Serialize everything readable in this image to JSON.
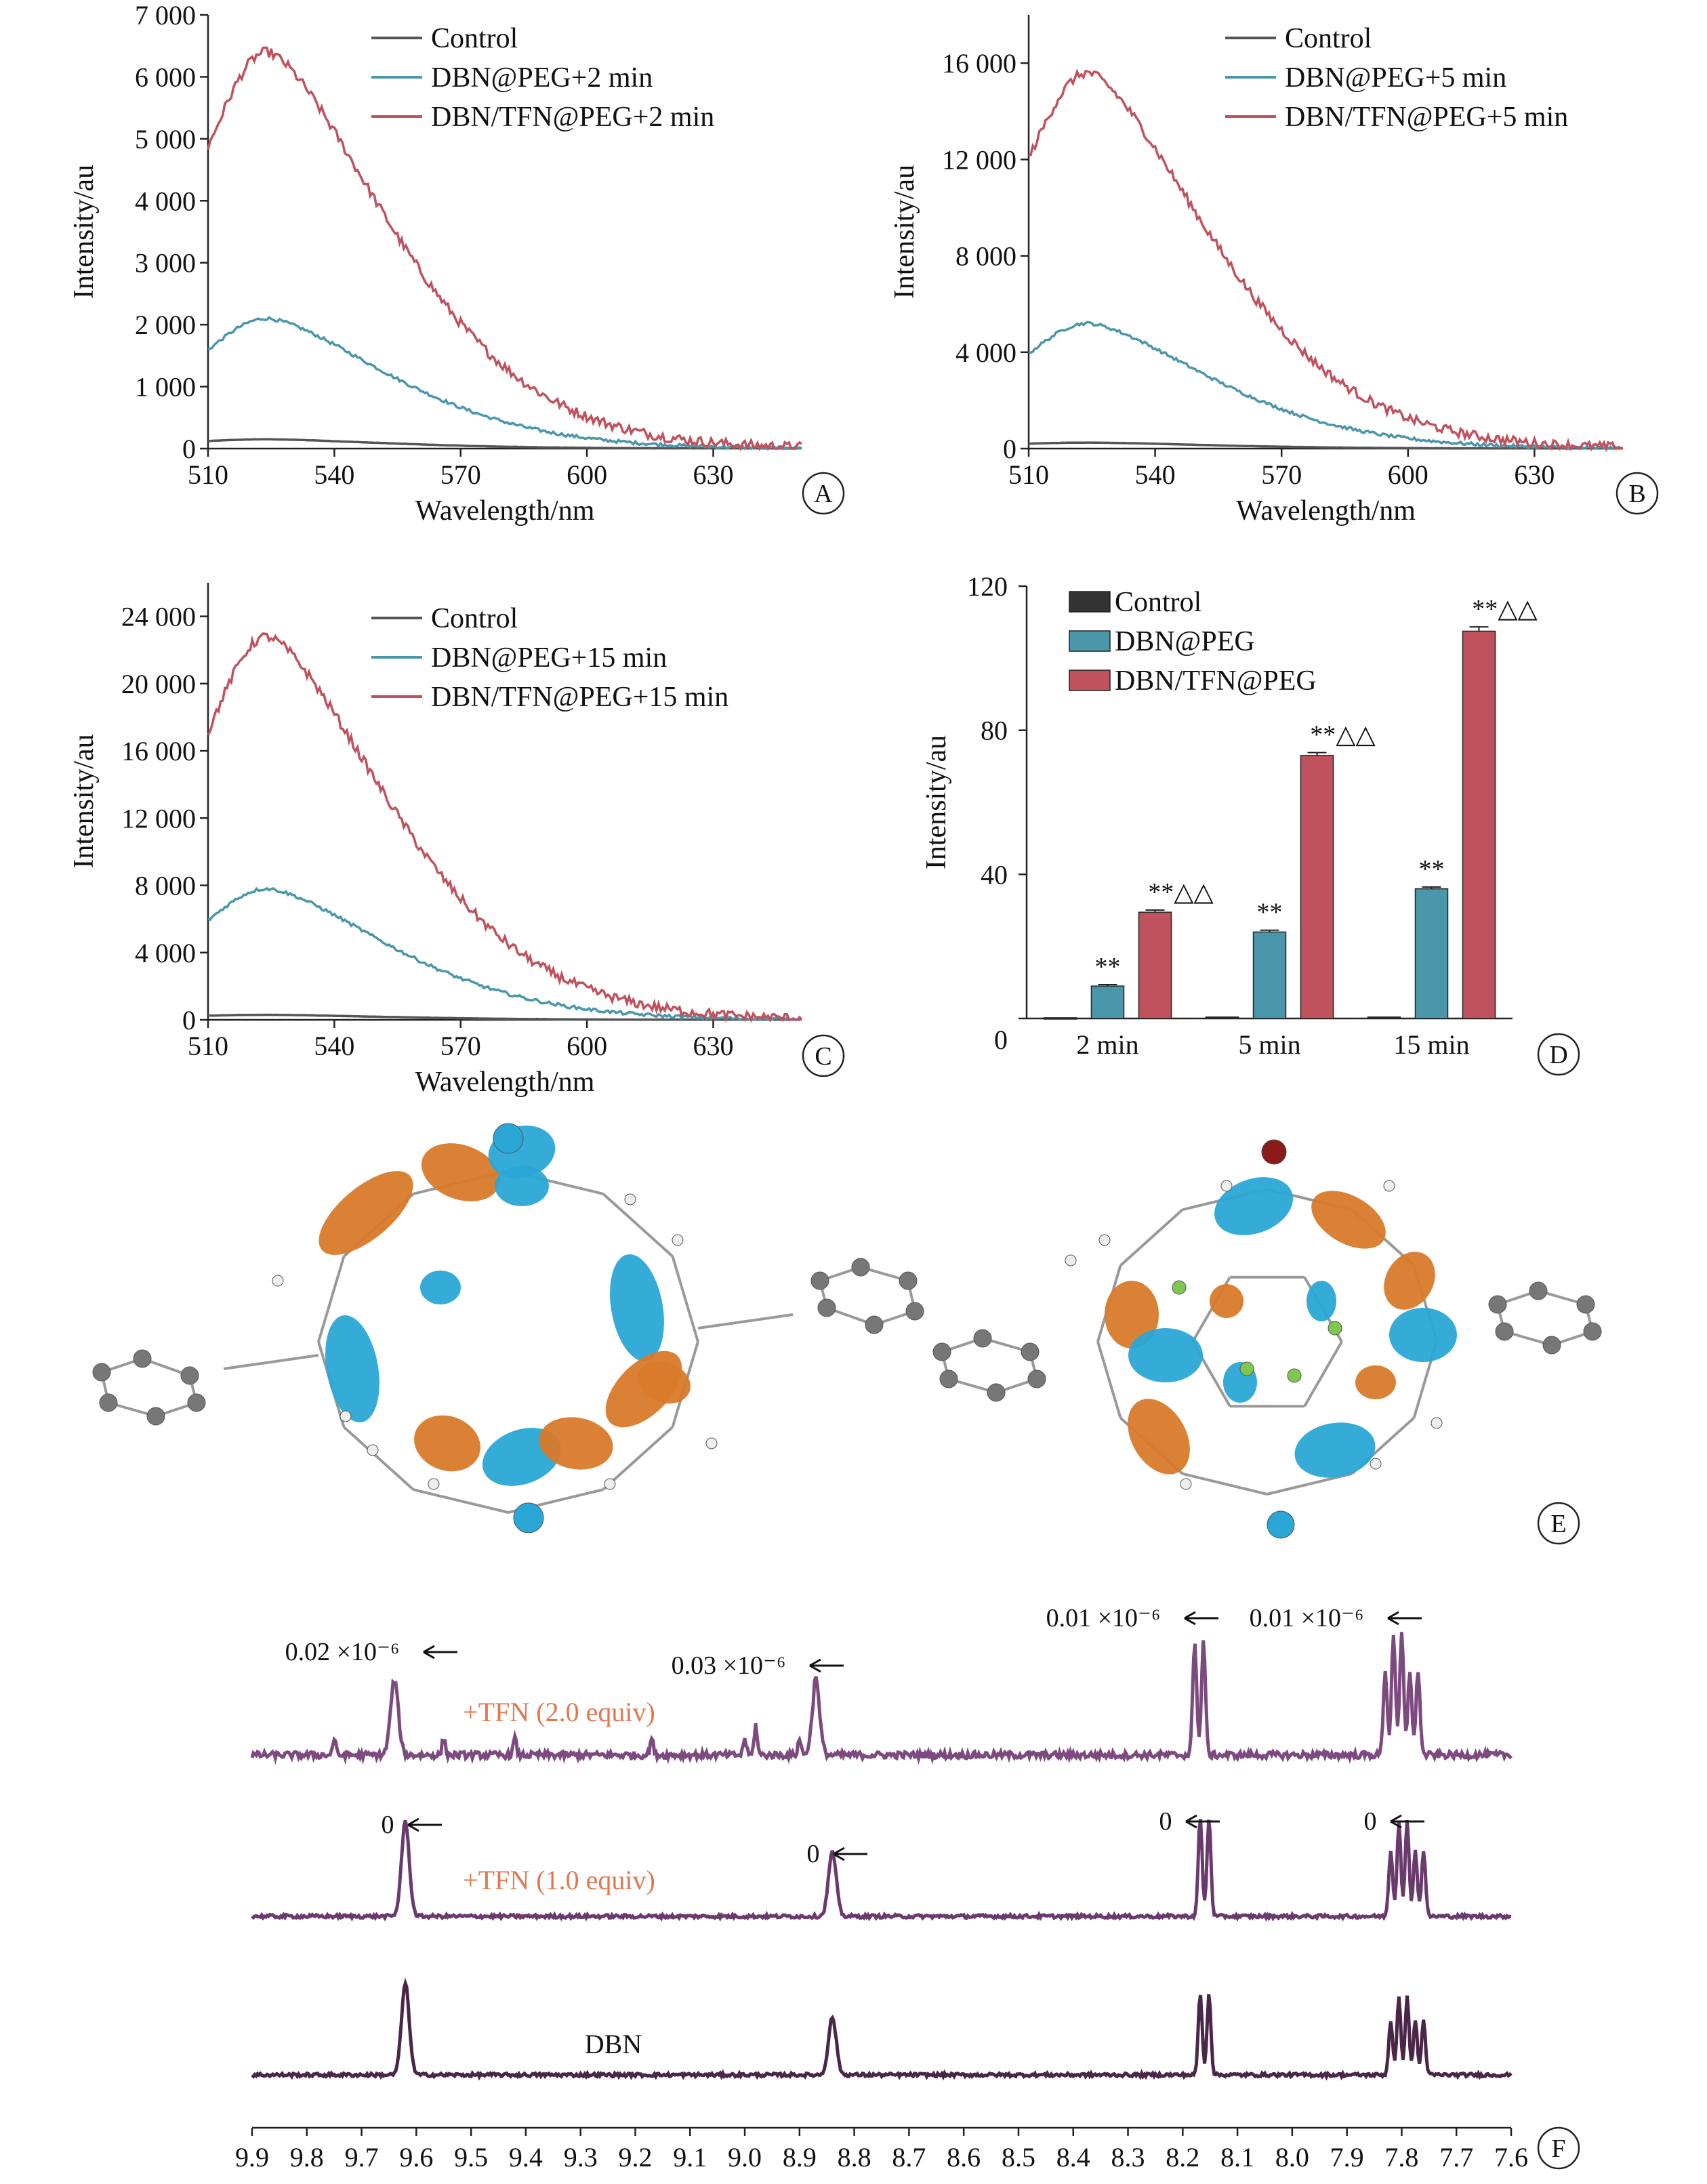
{
  "panel_labels": {
    "A": "A",
    "B": "B",
    "C": "C",
    "D": "D",
    "E": "E",
    "F": "F"
  },
  "colors": {
    "control": "#555555",
    "dbn": "#4a96ab",
    "tfn": "#c0525d",
    "nmr1": "#4a2648",
    "nmr2": "#6a3a6e",
    "nmr3": "#7d4a80",
    "orange": "#e07850",
    "iso_blue": "#2aa7d6",
    "iso_orange": "#d97a2a"
  },
  "chart_data": [
    {
      "type": "line",
      "panel": "A",
      "xlabel": "Wavelength/nm",
      "ylabel": "Intensity/au",
      "xlim": [
        510,
        651
      ],
      "ylim": [
        0,
        7000
      ],
      "xticks": [
        510,
        540,
        570,
        600,
        630
      ],
      "yticks": [
        0,
        1000,
        2000,
        3000,
        4000,
        5000,
        6000,
        7000
      ],
      "yticklabels": [
        "0",
        "1 000",
        "2 000",
        "3 000",
        "4 000",
        "5 000",
        "6 000",
        "7 000"
      ],
      "legend": "top-right",
      "series": [
        {
          "name": "Control",
          "color": "#555555",
          "peak": 150
        },
        {
          "name": "DBN@PEG+2 min",
          "color": "#4a96ab",
          "peak": 2100
        },
        {
          "name": "DBN/TFN@PEG+2 min",
          "color": "#c0525d",
          "peak": 6400
        }
      ]
    },
    {
      "type": "line",
      "panel": "B",
      "xlabel": "Wavelength/nm",
      "ylabel": "Intensity/au",
      "xlim": [
        510,
        651
      ],
      "ylim": [
        0,
        18000
      ],
      "xticks": [
        510,
        540,
        570,
        600,
        630
      ],
      "yticks": [
        0,
        4000,
        8000,
        12000,
        16000
      ],
      "yticklabels": [
        "0",
        "4 000",
        "8 000",
        "12 000",
        "16 000"
      ],
      "legend": "top-right",
      "series": [
        {
          "name": "Control",
          "color": "#555555",
          "peak": 250
        },
        {
          "name": "DBN@PEG+5 min",
          "color": "#4a96ab",
          "peak": 5200
        },
        {
          "name": "DBN/TFN@PEG+5 min",
          "color": "#c0525d",
          "peak": 15600
        }
      ]
    },
    {
      "type": "line",
      "panel": "C",
      "xlabel": "Wavelength/nm",
      "ylabel": "Intensity/au",
      "xlim": [
        510,
        651
      ],
      "ylim": [
        0,
        26000
      ],
      "xticks": [
        510,
        540,
        570,
        600,
        630
      ],
      "yticks": [
        0,
        4000,
        8000,
        12000,
        16000,
        20000,
        24000
      ],
      "yticklabels": [
        "0",
        "4 000",
        "8 000",
        "12 000",
        "16 000",
        "20 000",
        "24 000"
      ],
      "legend": "top-right",
      "series": [
        {
          "name": "Control",
          "color": "#555555",
          "peak": 300
        },
        {
          "name": "DBN@PEG+15 min",
          "color": "#4a96ab",
          "peak": 7800
        },
        {
          "name": "DBN/TFN@PEG+15 min",
          "color": "#c0525d",
          "peak": 22800
        }
      ]
    },
    {
      "type": "bar",
      "panel": "D",
      "ylabel": "Intensity/au",
      "ylim": [
        0,
        120
      ],
      "yticks": [
        0,
        40,
        80,
        120
      ],
      "categories": [
        "2 min",
        "5 min",
        "15 min"
      ],
      "legend": "top-left",
      "series": [
        {
          "name": "Control",
          "color": "#333333",
          "values": [
            0.2,
            0.4,
            0.4
          ],
          "errors": [
            0,
            0,
            0
          ],
          "marks": [
            "",
            "",
            ""
          ]
        },
        {
          "name": "DBN@PEG",
          "color": "#4a96ab",
          "values": [
            9,
            24,
            36
          ],
          "errors": [
            0.4,
            0.5,
            0.5
          ],
          "marks": [
            "**",
            "**",
            "**"
          ]
        },
        {
          "name": "DBN/TFN@PEG",
          "color": "#c0525d",
          "values": [
            29.5,
            73,
            107.5
          ],
          "errors": [
            0.6,
            0.8,
            1.2
          ],
          "marks": [
            "**△△",
            "**△△",
            "**△△"
          ]
        }
      ]
    },
    {
      "type": "line",
      "panel": "F",
      "xlim": [
        9.9,
        7.6
      ],
      "reverse_x": true,
      "xticks": [
        9.9,
        9.8,
        9.7,
        9.6,
        9.5,
        9.4,
        9.3,
        9.2,
        9.1,
        9.0,
        8.9,
        8.8,
        8.7,
        8.6,
        8.5,
        8.4,
        8.3,
        8.2,
        8.1,
        8.0,
        7.9,
        7.8,
        7.7,
        7.6
      ],
      "xticklabels": [
        "9.9",
        "9.8",
        "9.7",
        "9.6",
        "9.5",
        "9.4",
        "9.3",
        "9.2",
        "9.1",
        "9.0",
        "8.9",
        "8.8",
        "8.7",
        "8.6",
        "8.5",
        "8.4",
        "8.3",
        "8.2",
        "8.1",
        "8.0",
        "7.9",
        "7.8",
        "7.7",
        "7.6"
      ],
      "peaks_ppm": [
        9.62,
        8.84,
        8.16,
        7.79
      ],
      "traces": [
        {
          "label": "+TFN (2.0 equiv)",
          "shifts": [
            "0.02 ×10⁻⁶",
            "0.03 ×10⁻⁶",
            "0.01 ×10⁻⁶",
            "0.01 ×10⁻⁶"
          ]
        },
        {
          "label": "+TFN (1.0 equiv)",
          "shifts": [
            "0",
            "0",
            "0",
            "0"
          ]
        },
        {
          "label": "DBN",
          "shifts": []
        }
      ]
    }
  ]
}
